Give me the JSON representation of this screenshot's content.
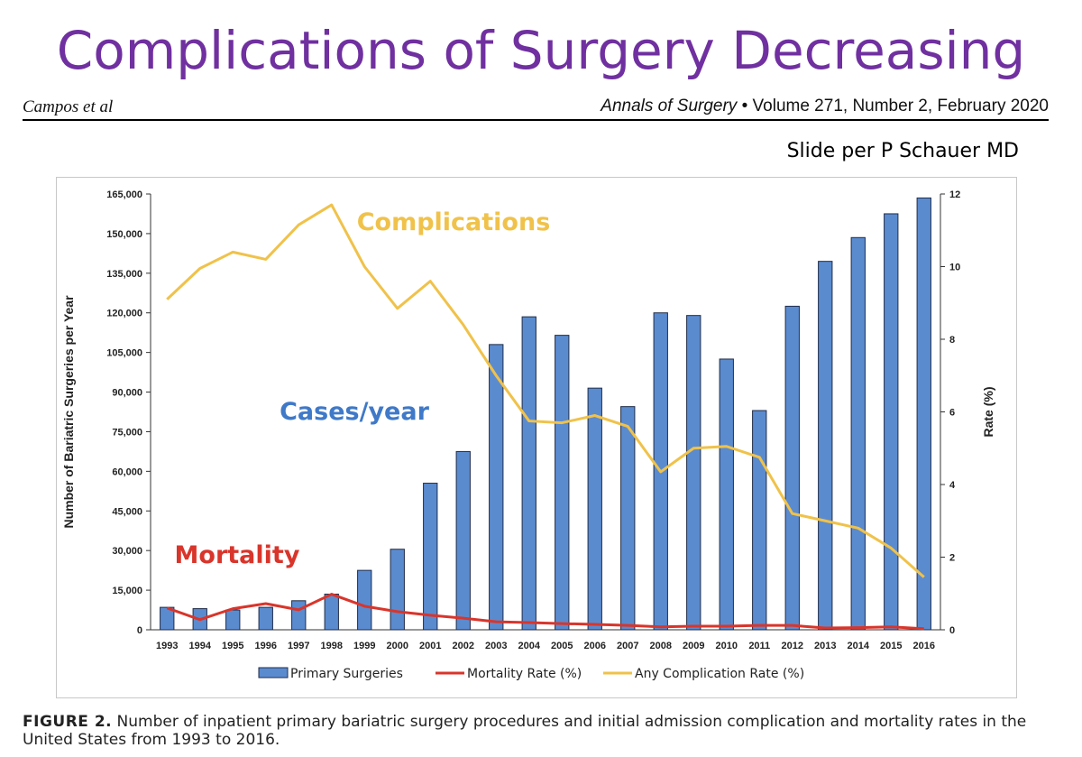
{
  "slide": {
    "title": "Complications of Surgery Decreasing",
    "citation_left": "Campos et al",
    "citation_journal": "Annals of Surgery",
    "citation_bullet": "•",
    "citation_details": "Volume 271, Number 2, February 2020",
    "credit": "Slide per P Schauer MD"
  },
  "caption": {
    "figure_label": "FIGURE 2.",
    "text": "Number of inpatient primary bariatric surgery procedures and initial admission complication and mortality rates in the United States from 1993 to 2016."
  },
  "colors": {
    "bar_fill": "#5b8bcf",
    "bar_stroke": "#1f2d4a",
    "mortality": "#d9352b",
    "complication": "#f0c24a",
    "complications_annotation": "#f0c24a",
    "cases_annotation": "#3f79c8",
    "mortality_annotation": "#d9352b",
    "title": "#7030a0"
  },
  "chart_data": {
    "type": "bar",
    "title": "",
    "categories": [
      "1993",
      "1994",
      "1995",
      "1996",
      "1997",
      "1998",
      "1999",
      "2000",
      "2001",
      "2002",
      "2003",
      "2004",
      "2005",
      "2006",
      "2007",
      "2008",
      "2009",
      "2010",
      "2011",
      "2012",
      "2013",
      "2014",
      "2015",
      "2016"
    ],
    "series": [
      {
        "name": "Primary Surgeries",
        "kind": "bar",
        "axis": "left",
        "values": [
          8500,
          8000,
          7500,
          8500,
          11000,
          13500,
          22500,
          30500,
          55500,
          67500,
          108000,
          118500,
          111500,
          91500,
          84500,
          120000,
          119000,
          102500,
          83000,
          122500,
          139500,
          148500,
          157500,
          163500
        ]
      },
      {
        "name": "Mortality Rate (%)",
        "kind": "line",
        "axis": "right",
        "values": [
          0.6,
          0.28,
          0.58,
          0.72,
          0.55,
          0.98,
          0.65,
          0.5,
          0.4,
          0.32,
          0.22,
          0.2,
          0.17,
          0.15,
          0.12,
          0.08,
          0.1,
          0.1,
          0.12,
          0.12,
          0.05,
          0.06,
          0.08,
          0.03
        ]
      },
      {
        "name": "Any Complication Rate (%)",
        "kind": "line",
        "axis": "right",
        "values": [
          9.1,
          9.95,
          10.4,
          10.2,
          11.15,
          11.7,
          10.0,
          8.85,
          9.6,
          8.4,
          7.0,
          5.75,
          5.7,
          5.9,
          5.6,
          4.35,
          5.0,
          5.05,
          4.75,
          3.2,
          3.0,
          2.8,
          2.25,
          1.45
        ]
      }
    ],
    "ylabel": "Number of Bariatric Surgeries per Year",
    "ylim": [
      0,
      165000
    ],
    "yticks": [
      "0",
      "15,000",
      "30,000",
      "45,000",
      "60,000",
      "75,000",
      "90,000",
      "105,000",
      "120,000",
      "135,000",
      "150,000",
      "165,000"
    ],
    "y2label": "Rate (%)",
    "y2lim": [
      0,
      12
    ],
    "y2ticks": [
      "0",
      "2",
      "4",
      "6",
      "8",
      "10",
      "12"
    ],
    "legend_position": "bottom",
    "grid": false,
    "annotations": [
      {
        "text": "Complications",
        "color_key": "complications_annotation"
      },
      {
        "text": "Cases/year",
        "color_key": "cases_annotation"
      },
      {
        "text": "Mortality",
        "color_key": "mortality_annotation"
      }
    ]
  }
}
